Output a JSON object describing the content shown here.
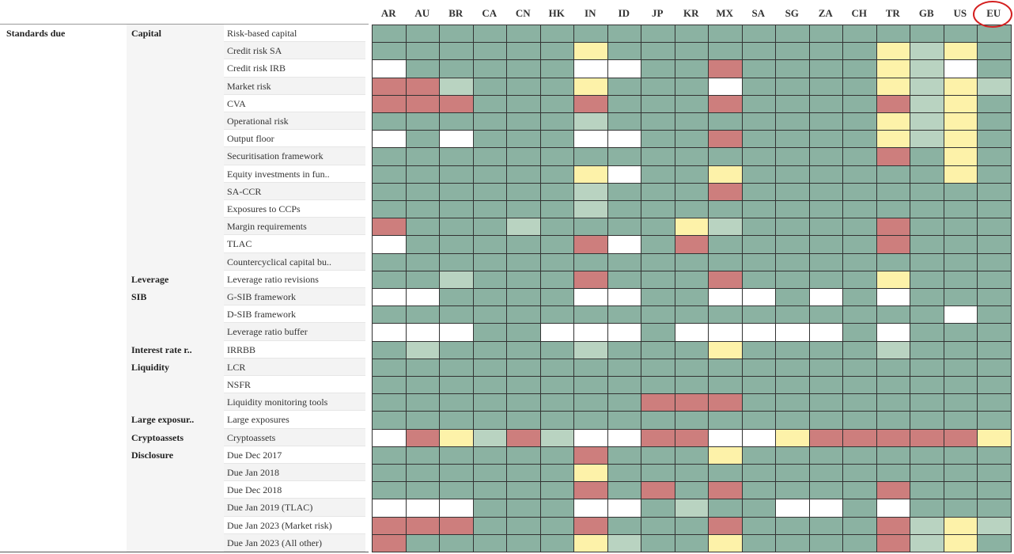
{
  "header": {
    "columns": [
      "AR",
      "AU",
      "BR",
      "CA",
      "CN",
      "HK",
      "IN",
      "ID",
      "JP",
      "KR",
      "MX",
      "SA",
      "SG",
      "ZA",
      "CH",
      "TR",
      "GB",
      "US",
      "EU"
    ],
    "highlighted": 18
  },
  "section": "Standards due",
  "colors": {
    "G": "#8bb2a2",
    "L": "#b9d3c1",
    "Y": "#fdf2a9",
    "R": "#cd7e7d",
    "W": "#ffffff"
  },
  "rows": [
    {
      "group": "Capital",
      "label": "Risk-based capital",
      "cells": "GGGGGGGGGGGGGGGGGGG"
    },
    {
      "label": "Credit risk SA",
      "cells": "GGGGGGYGGGGGGGGYLYG"
    },
    {
      "label": "Credit risk IRB",
      "cells": "WGGGGGWWGGRGGGGYLWG"
    },
    {
      "label": "Market risk",
      "cells": "RRLGGGYGGGWGGGGYLYL"
    },
    {
      "label": "CVA",
      "cells": "RRRGGGRGGGRGGGGRLYG"
    },
    {
      "label": "Operational risk",
      "cells": "GGGGGGLGGGGGGGGYLYG"
    },
    {
      "label": "Output floor",
      "cells": "WGWGGGWWGGRGGGGYLYG"
    },
    {
      "label": "Securitisation framework",
      "cells": "GGGGGGGGGGGGGGGRGYG"
    },
    {
      "label": "Equity investments in fun..",
      "cells": "GGGGGGYWGGYGGGGGGYG"
    },
    {
      "label": "SA-CCR",
      "cells": "GGGGGGLGGGRGGGGGGGG"
    },
    {
      "label": "Exposures to CCPs",
      "cells": "GGGGGGLGGGGGGGGGGGG"
    },
    {
      "label": "Margin requirements",
      "cells": "RGGGLGGGGYLGGGGRGGG"
    },
    {
      "label": "TLAC",
      "cells": "WGGGGGRWGRGGGGGRGGG"
    },
    {
      "label": "Countercyclical capital bu..",
      "cells": "GGGGGGGGGGGGGGGGGGG"
    },
    {
      "group": "Leverage",
      "label": "Leverage ratio revisions",
      "cells": "GGLGGGRGGGRGGGGYGGG"
    },
    {
      "group": "SIB",
      "label": "G-SIB framework",
      "cells": "WWGGGGWWGGWWGWGWGGG"
    },
    {
      "label": "D-SIB framework",
      "cells": "GGGGGGGGGGGGGGGGGWG"
    },
    {
      "label": "Leverage ratio buffer",
      "cells": "WWWGGWWWGWWWWWGWGGG"
    },
    {
      "group": "Interest rate r..",
      "label": "IRRBB",
      "cells": "GLGGGGLGGGYGGGGLGGG"
    },
    {
      "group": "Liquidity",
      "label": "LCR",
      "cells": "GGGGGGGGGGGGGGGGGGG"
    },
    {
      "label": "NSFR",
      "cells": "GGGGGGGGGGGGGGGGGGG"
    },
    {
      "label": "Liquidity monitoring tools",
      "cells": "GGGGGGGGRRRGGGGGGGG"
    },
    {
      "group": "Large exposur..",
      "label": "Large exposures",
      "cells": "GGGGGGGGGGGGGGGGGGG"
    },
    {
      "group": "Cryptoassets",
      "label": "Cryptoassets",
      "cells": "WRYLRLWWRRWWYRRRRRY"
    },
    {
      "group": "Disclosure",
      "label": "Due Dec 2017",
      "cells": "GGGGGGRGGGYGGGGGGGG"
    },
    {
      "label": "Due Jan 2018",
      "cells": "GGGGGGYGGGGGGGGGGGG"
    },
    {
      "label": "Due Dec 2018",
      "cells": "GGGGGGRGRGRGGGGRGGG"
    },
    {
      "label": "Due Jan 2019 (TLAC)",
      "cells": "WWWGGGWWGLGGWWGWGGG"
    },
    {
      "label": "Due Jan 2023 (Market risk)",
      "cells": "RRRGGGRGGGRGGGGRLYL"
    },
    {
      "label": "Due Jan 2023 (All other)",
      "cells": "RGGGGGYLGGYGGGGRLYG"
    }
  ]
}
